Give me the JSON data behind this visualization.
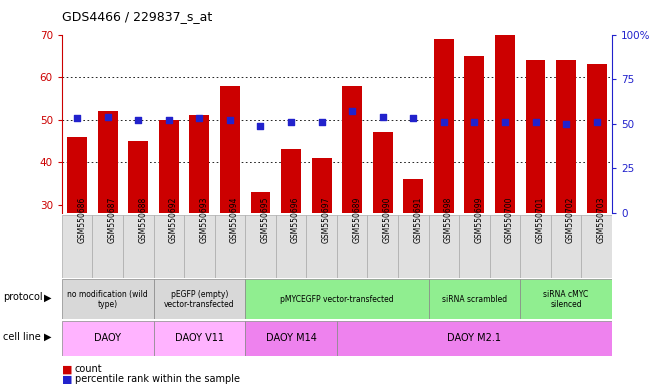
{
  "title": "GDS4466 / 229837_s_at",
  "samples": [
    "GSM550686",
    "GSM550687",
    "GSM550688",
    "GSM550692",
    "GSM550693",
    "GSM550694",
    "GSM550695",
    "GSM550696",
    "GSM550697",
    "GSM550689",
    "GSM550690",
    "GSM550691",
    "GSM550698",
    "GSM550699",
    "GSM550700",
    "GSM550701",
    "GSM550702",
    "GSM550703"
  ],
  "counts": [
    46,
    52,
    45,
    50,
    51,
    58,
    33,
    43,
    41,
    58,
    47,
    36,
    69,
    65,
    70,
    64,
    64,
    63
  ],
  "percentiles": [
    53,
    54,
    52,
    52,
    53,
    52,
    49,
    51,
    51,
    57,
    54,
    53,
    51,
    51,
    51,
    51,
    50,
    51
  ],
  "ylim_left": [
    28,
    70
  ],
  "ylim_right": [
    0,
    100
  ],
  "yticks_left": [
    30,
    40,
    50,
    60,
    70
  ],
  "yticks_right": [
    0,
    25,
    50,
    75,
    100
  ],
  "bar_color": "#cc0000",
  "dot_color": "#2222cc",
  "axis_left_color": "#cc0000",
  "axis_right_color": "#2222cc",
  "bg_gray": "#d8d8d8",
  "bg_green": "#90ee90",
  "bg_violet": "#ee82ee",
  "protocol_labels": [
    {
      "text": "no modification (wild\ntype)",
      "start": 0,
      "end": 3,
      "color": "#d8d8d8"
    },
    {
      "text": "pEGFP (empty)\nvector-transfected",
      "start": 3,
      "end": 6,
      "color": "#d8d8d8"
    },
    {
      "text": "pMYCEGFP vector-transfected",
      "start": 6,
      "end": 12,
      "color": "#90ee90"
    },
    {
      "text": "siRNA scrambled",
      "start": 12,
      "end": 15,
      "color": "#90ee90"
    },
    {
      "text": "siRNA cMYC\nsilenced",
      "start": 15,
      "end": 18,
      "color": "#90ee90"
    }
  ],
  "cellline_labels": [
    {
      "text": "DAOY",
      "start": 0,
      "end": 3,
      "color": "#ffb3ff"
    },
    {
      "text": "DAOY V11",
      "start": 3,
      "end": 6,
      "color": "#ffb3ff"
    },
    {
      "text": "DAOY M14",
      "start": 6,
      "end": 9,
      "color": "#ee82ee"
    },
    {
      "text": "DAOY M2.1",
      "start": 9,
      "end": 18,
      "color": "#ee82ee"
    }
  ]
}
